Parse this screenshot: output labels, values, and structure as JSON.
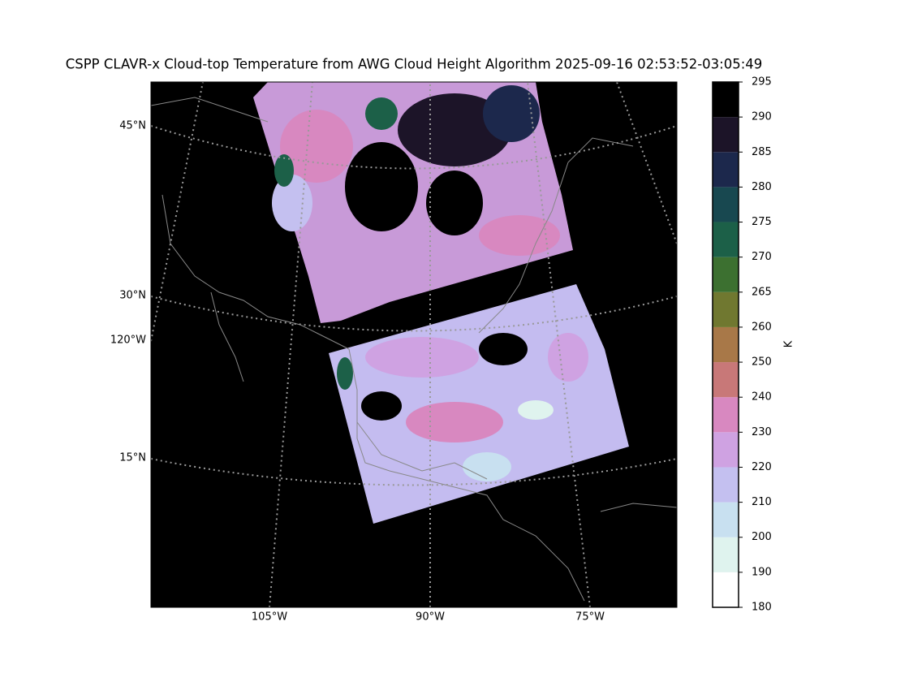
{
  "title": "CSPP CLAVR-x Cloud-top Temperature from AWG Cloud Height Algorithm 2025-09-16 02:53:52-03:05:49",
  "map": {
    "lat_labels": [
      "45°N",
      "30°N",
      "15°N"
    ],
    "lon_labels": [
      "120°W",
      "105°W",
      "90°W",
      "75°W"
    ]
  },
  "colorbar": {
    "label": "K",
    "ticks": [
      180,
      190,
      200,
      210,
      220,
      230,
      240,
      250,
      260,
      265,
      270,
      275,
      280,
      285,
      290,
      295
    ],
    "colors": [
      "#ffffff",
      "#dff3ee",
      "#c8e0f0",
      "#c4c0f0",
      "#cfa2e2",
      "#d888c0",
      "#c87878",
      "#a87848",
      "#707830",
      "#3c7030",
      "#1c6048",
      "#184850",
      "#1c284c",
      "#1c1428",
      "#000000"
    ]
  }
}
